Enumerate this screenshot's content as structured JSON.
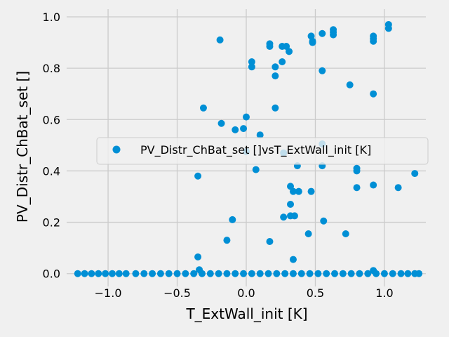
{
  "chart_data": {
    "type": "scatter",
    "xlabel": "T_ExtWall_init [K]",
    "ylabel": "PV_Distr_ChBat_set []",
    "xlim": [
      -1.3,
      1.3
    ],
    "ylim": [
      -0.05,
      1.03
    ],
    "grid": true,
    "legend_placement": "center-right",
    "x_ticks": [
      -1.0,
      -0.5,
      0.0,
      0.5,
      1.0
    ],
    "x_tick_labels": [
      "−1.0",
      "−0.5",
      "0.0",
      "0.5",
      "1.0"
    ],
    "y_ticks": [
      0.0,
      0.2,
      0.4,
      0.6,
      0.8,
      1.0
    ],
    "y_tick_labels": [
      "0.0",
      "0.2",
      "0.4",
      "0.6",
      "0.8",
      "1.0"
    ],
    "colors": {
      "series": "#008fd5",
      "background": "#f0f0f0",
      "grid": "#cbcbcb"
    },
    "series": [
      {
        "name": "PV_Distr_ChBat_set []vsT_ExtWall_init [K]",
        "points": [
          [
            -0.19,
            0.91
          ],
          [
            0.04,
            0.825
          ],
          [
            0.04,
            0.805
          ],
          [
            0.17,
            0.895
          ],
          [
            0.17,
            0.885
          ],
          [
            0.21,
            0.805
          ],
          [
            0.21,
            0.77
          ],
          [
            0.26,
            0.885
          ],
          [
            0.26,
            0.825
          ],
          [
            0.29,
            0.885
          ],
          [
            0.31,
            0.865
          ],
          [
            0.47,
            0.925
          ],
          [
            0.48,
            0.905
          ],
          [
            0.48,
            0.9
          ],
          [
            0.55,
            0.935
          ],
          [
            0.55,
            0.79
          ],
          [
            0.63,
            0.95
          ],
          [
            0.63,
            0.94
          ],
          [
            0.63,
            0.93
          ],
          [
            0.92,
            0.925
          ],
          [
            0.92,
            0.915
          ],
          [
            0.92,
            0.905
          ],
          [
            1.03,
            0.97
          ],
          [
            1.03,
            0.955
          ],
          [
            0.75,
            0.735
          ],
          [
            0.92,
            0.7
          ],
          [
            -0.31,
            0.645
          ],
          [
            0.0,
            0.61
          ],
          [
            -0.18,
            0.585
          ],
          [
            -0.02,
            0.565
          ],
          [
            -0.08,
            0.56
          ],
          [
            0.1,
            0.54
          ],
          [
            0.21,
            0.645
          ],
          [
            0.55,
            0.505
          ],
          [
            0.0,
            0.475
          ],
          [
            0.07,
            0.405
          ],
          [
            0.27,
            0.47
          ],
          [
            0.37,
            0.42
          ],
          [
            0.55,
            0.42
          ],
          [
            0.8,
            0.41
          ],
          [
            0.8,
            0.4
          ],
          [
            -0.35,
            0.38
          ],
          [
            1.22,
            0.39
          ],
          [
            0.32,
            0.34
          ],
          [
            0.34,
            0.32
          ],
          [
            0.38,
            0.32
          ],
          [
            0.47,
            0.32
          ],
          [
            0.8,
            0.335
          ],
          [
            0.92,
            0.345
          ],
          [
            1.1,
            0.335
          ],
          [
            0.32,
            0.27
          ],
          [
            0.27,
            0.22
          ],
          [
            0.32,
            0.225
          ],
          [
            0.35,
            0.225
          ],
          [
            -0.1,
            0.21
          ],
          [
            0.56,
            0.205
          ],
          [
            0.45,
            0.155
          ],
          [
            0.72,
            0.155
          ],
          [
            -0.14,
            0.13
          ],
          [
            0.17,
            0.125
          ],
          [
            -0.35,
            0.065
          ],
          [
            0.34,
            0.055
          ],
          [
            -0.34,
            0.015
          ],
          [
            0.92,
            0.012
          ],
          [
            -1.22,
            0.0
          ],
          [
            -1.17,
            0.0
          ],
          [
            -1.12,
            0.0
          ],
          [
            -1.07,
            0.0
          ],
          [
            -1.02,
            0.0
          ],
          [
            -0.97,
            0.0
          ],
          [
            -0.92,
            0.0
          ],
          [
            -0.87,
            0.0
          ],
          [
            -0.8,
            0.0
          ],
          [
            -0.74,
            0.0
          ],
          [
            -0.68,
            0.0
          ],
          [
            -0.62,
            0.0
          ],
          [
            -0.56,
            0.0
          ],
          [
            -0.5,
            0.0
          ],
          [
            -0.44,
            0.0
          ],
          [
            -0.38,
            0.0
          ],
          [
            -0.32,
            0.0
          ],
          [
            -0.26,
            0.0
          ],
          [
            -0.2,
            0.0
          ],
          [
            -0.14,
            0.0
          ],
          [
            -0.08,
            0.0
          ],
          [
            -0.02,
            0.0
          ],
          [
            0.04,
            0.0
          ],
          [
            0.1,
            0.0
          ],
          [
            0.16,
            0.0
          ],
          [
            0.22,
            0.0
          ],
          [
            0.28,
            0.0
          ],
          [
            0.34,
            0.0
          ],
          [
            0.4,
            0.0
          ],
          [
            0.46,
            0.0
          ],
          [
            0.52,
            0.0
          ],
          [
            0.58,
            0.0
          ],
          [
            0.64,
            0.0
          ],
          [
            0.7,
            0.0
          ],
          [
            0.76,
            0.0
          ],
          [
            0.82,
            0.0
          ],
          [
            0.88,
            0.0
          ],
          [
            0.94,
            0.0
          ],
          [
            1.0,
            0.0
          ],
          [
            1.06,
            0.0
          ],
          [
            1.12,
            0.0
          ],
          [
            1.17,
            0.0
          ],
          [
            1.22,
            0.0
          ],
          [
            1.25,
            0.0
          ]
        ]
      }
    ]
  }
}
